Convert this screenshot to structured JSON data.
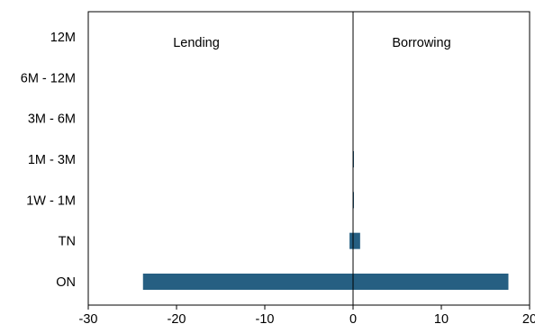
{
  "chart_data": {
    "type": "bar",
    "orientation": "horizontal",
    "categories": [
      "12M",
      "6M - 12M",
      "3M - 6M",
      "1M - 3M",
      "1W - 1M",
      "TN",
      "ON"
    ],
    "series": [
      {
        "values": [
          0,
          0,
          0,
          0,
          0,
          -0.4,
          -23.8
        ]
      },
      {
        "values": [
          0,
          0,
          0,
          0.1,
          0.1,
          0.8,
          17.6
        ]
      }
    ],
    "xlim": [
      -30,
      20
    ],
    "xticks": [
      "-30",
      "-20",
      "-10",
      "0",
      "10",
      "20"
    ],
    "annotations": {
      "left": "Lending",
      "right": "Borrowing"
    },
    "bar_color": "#265f82",
    "grid": false
  }
}
